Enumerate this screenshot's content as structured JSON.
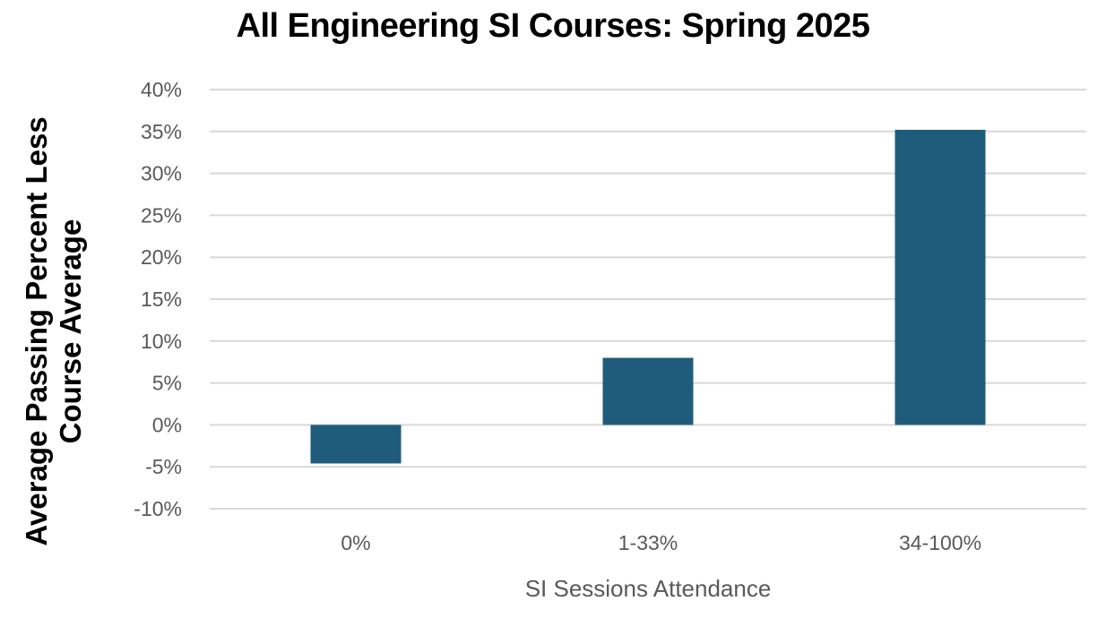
{
  "chart_data": {
    "type": "bar",
    "title": "All Engineering SI Courses: Spring 2025",
    "xlabel": "SI Sessions Attendance",
    "ylabel_lines": [
      "Average Passing Percent Less",
      "Course Average"
    ],
    "categories": [
      "0%",
      "1-33%",
      "34-100%"
    ],
    "values": [
      -4.6,
      8.0,
      35.2
    ],
    "value_unit": "%",
    "ylim": [
      -10,
      40
    ],
    "yticks": [
      -10,
      -5,
      0,
      5,
      10,
      15,
      20,
      25,
      30,
      35,
      40
    ],
    "ytick_labels": [
      "-10%",
      "-5%",
      "0%",
      "5%",
      "10%",
      "15%",
      "20%",
      "25%",
      "30%",
      "35%",
      "40%"
    ],
    "grid": true,
    "legend": "none",
    "bar_color": "#1f5c7c",
    "grid_color": "#d9d9d9"
  }
}
